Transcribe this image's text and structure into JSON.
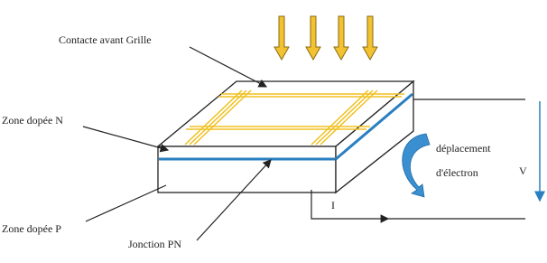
{
  "labels": {
    "grid_contact": "Contacte avant Grille",
    "n_zone": "Zone dopée N",
    "p_zone": "Zone dopée P",
    "junction": "Jonction PN",
    "electron_line1": "déplacement",
    "electron_line2": "d'électron",
    "current": "I",
    "voltage": "V"
  }
}
